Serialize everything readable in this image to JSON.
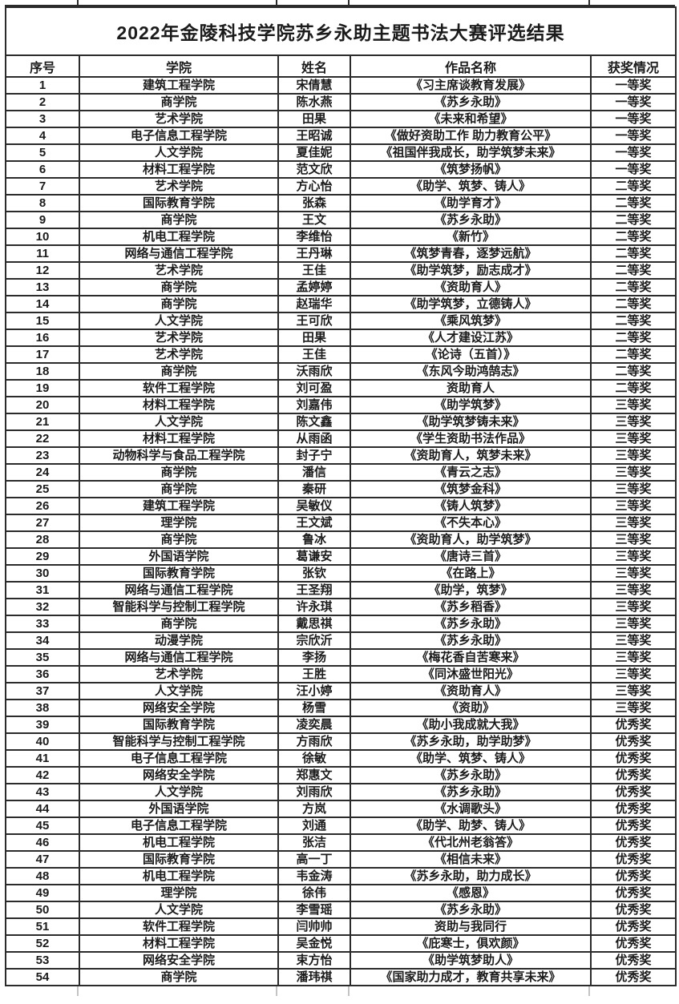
{
  "title": "2022年金陵科技学院苏乡永助主题书法大赛评选结果",
  "colors": {
    "paper": "#ffffff",
    "border": "#2b2b2b",
    "text": "#1b1b1b"
  },
  "table": {
    "column_keys": [
      "index",
      "college",
      "name",
      "work",
      "award"
    ],
    "headers": [
      "序号",
      "学院",
      "姓名",
      "作品名称",
      "获奖情况"
    ],
    "rows": [
      [
        "1",
        "建筑工程学院",
        "宋倩慧",
        "《习主席谈教育发展》",
        "一等奖"
      ],
      [
        "2",
        "商学院",
        "陈水燕",
        "《苏乡永助》",
        "一等奖"
      ],
      [
        "3",
        "艺术学院",
        "田果",
        "《未来和希望》",
        "一等奖"
      ],
      [
        "4",
        "电子信息工程学院",
        "王昭诚",
        "《做好资助工作 助力教育公平》",
        "一等奖"
      ],
      [
        "5",
        "人文学院",
        "夏佳妮",
        "《祖国伴我成长，助学筑梦未来》",
        "一等奖"
      ],
      [
        "6",
        "材料工程学院",
        "范文欣",
        "《筑梦扬帆》",
        "一等奖"
      ],
      [
        "7",
        "艺术学院",
        "方心怡",
        "《助学、筑梦、铸人》",
        "二等奖"
      ],
      [
        "8",
        "国际教育学院",
        "张森",
        "《助学育才》",
        "二等奖"
      ],
      [
        "9",
        "商学院",
        "王文",
        "《苏乡永助》",
        "二等奖"
      ],
      [
        "10",
        "机电工程学院",
        "李维怡",
        "《新竹》",
        "二等奖"
      ],
      [
        "11",
        "网络与通信工程学院",
        "王丹琳",
        "《筑梦青春，逐梦远航》",
        "二等奖"
      ],
      [
        "12",
        "艺术学院",
        "王佳",
        "《助学筑梦，励志成才》",
        "二等奖"
      ],
      [
        "13",
        "商学院",
        "孟婷婷",
        "《资助育人》",
        "二等奖"
      ],
      [
        "14",
        "商学院",
        "赵瑞华",
        "《助学筑梦，立德铸人》",
        "二等奖"
      ],
      [
        "15",
        "人文学院",
        "王可欣",
        "《乘风筑梦》",
        "二等奖"
      ],
      [
        "16",
        "艺术学院",
        "田果",
        "《人才建设江苏》",
        "二等奖"
      ],
      [
        "17",
        "艺术学院",
        "王佳",
        "《论诗（五首）》",
        "二等奖"
      ],
      [
        "18",
        "商学院",
        "沃雨欣",
        "《东风今助鸿鹄志》",
        "二等奖"
      ],
      [
        "19",
        "软件工程学院",
        "刘可盈",
        "资助育人",
        "二等奖"
      ],
      [
        "20",
        "材料工程学院",
        "刘嘉伟",
        "《助学筑梦》",
        "三等奖"
      ],
      [
        "21",
        "人文学院",
        "陈文鑫",
        "《助学筑梦铸未来》",
        "三等奖"
      ],
      [
        "22",
        "材料工程学院",
        "从雨函",
        "《学生资助书法作品》",
        "三等奖"
      ],
      [
        "23",
        "动物科学与食品工程学院",
        "封子宁",
        "《资助育人，筑梦未来》",
        "三等奖"
      ],
      [
        "24",
        "商学院",
        "潘信",
        "《青云之志》",
        "三等奖"
      ],
      [
        "25",
        "商学院",
        "秦研",
        "《筑梦金科》",
        "三等奖"
      ],
      [
        "26",
        "建筑工程学院",
        "吴敏仪",
        "《铸人筑梦》",
        "三等奖"
      ],
      [
        "27",
        "理学院",
        "王文斌",
        "《不失本心》",
        "三等奖"
      ],
      [
        "28",
        "商学院",
        "鲁冰",
        "《资助育人，助学筑梦》",
        "三等奖"
      ],
      [
        "29",
        "外国语学院",
        "葛谦安",
        "《唐诗三首》",
        "三等奖"
      ],
      [
        "30",
        "国际教育学院",
        "张钦",
        "《在路上》",
        "三等奖"
      ],
      [
        "31",
        "网络与通信工程学院",
        "王圣翔",
        "《助学，筑梦》",
        "三等奖"
      ],
      [
        "32",
        "智能科学与控制工程学院",
        "许永琪",
        "《苏乡稻香》",
        "三等奖"
      ],
      [
        "33",
        "商学院",
        "戴思祺",
        "《苏乡永助》",
        "三等奖"
      ],
      [
        "34",
        "动漫学院",
        "宗欣沂",
        "《苏乡永助》",
        "三等奖"
      ],
      [
        "35",
        "网络与通信工程学院",
        "李扬",
        "《梅花香自苦寒来》",
        "三等奖"
      ],
      [
        "36",
        "艺术学院",
        "王胜",
        "《同沐盛世阳光》",
        "三等奖"
      ],
      [
        "37",
        "人文学院",
        "汪小婷",
        "《资助育人》",
        "三等奖"
      ],
      [
        "38",
        "网络安全学院",
        "杨雪",
        "《资助》",
        "三等奖"
      ],
      [
        "39",
        "国际教育学院",
        "凌奕晨",
        "《助小我成就大我》",
        "优秀奖"
      ],
      [
        "40",
        "智能科学与控制工程学院",
        "方雨欣",
        "《苏乡永助，助学助梦》",
        "优秀奖"
      ],
      [
        "41",
        "电子信息工程学院",
        "徐敏",
        "《助学、筑梦、铸人》",
        "优秀奖"
      ],
      [
        "42",
        "网络安全学院",
        "郑惠文",
        "《苏乡永助》",
        "优秀奖"
      ],
      [
        "43",
        "人文学院",
        "刘雨欣",
        "《苏乡永助》",
        "优秀奖"
      ],
      [
        "44",
        "外国语学院",
        "方岚",
        "《水调歌头》",
        "优秀奖"
      ],
      [
        "45",
        "电子信息工程学院",
        "刘通",
        "《助学、助梦、铸人》",
        "优秀奖"
      ],
      [
        "46",
        "机电工程学院",
        "张洁",
        "《代北州老翁答》",
        "优秀奖"
      ],
      [
        "47",
        "国际教育学院",
        "高一丁",
        "《相信未来》",
        "优秀奖"
      ],
      [
        "48",
        "机电工程学院",
        "韦金涛",
        "《苏乡永助，助力成长》",
        "优秀奖"
      ],
      [
        "49",
        "理学院",
        "徐伟",
        "《感恩》",
        "优秀奖"
      ],
      [
        "50",
        "人文学院",
        "李雪瑶",
        "《苏乡永助》",
        "优秀奖"
      ],
      [
        "51",
        "软件工程学院",
        "闫帅帅",
        "资助与我同行",
        "优秀奖"
      ],
      [
        "52",
        "材料工程学院",
        "吴金悦",
        "《庇寒士，俱欢颜》",
        "优秀奖"
      ],
      [
        "53",
        "网络安全学院",
        "束方怡",
        "《助学筑梦助人》",
        "优秀奖"
      ],
      [
        "54",
        "商学院",
        "潘玮祺",
        "《国家助力成才，教育共享未来》",
        "优秀奖"
      ]
    ]
  }
}
